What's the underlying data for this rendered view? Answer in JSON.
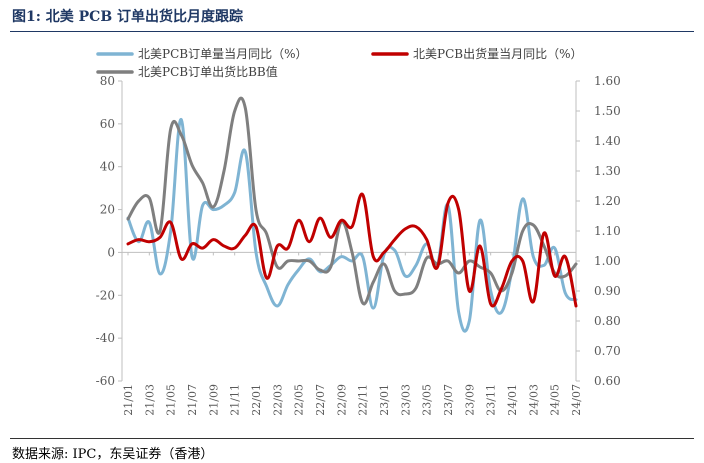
{
  "figure_title": "图1: 北美 PCB 订单出货比月度跟踪",
  "source_note": "数据来源: IPC，东吴证券（香港）",
  "colors": {
    "orders": "#7fb4d3",
    "shipments": "#c00000",
    "bb_ratio": "#7f7f7f",
    "title": "#1f3864",
    "axis": "#bfbfbf",
    "tick_text": "#595959"
  },
  "chart_data": {
    "type": "line",
    "x": [
      "21/01",
      "21/02",
      "21/03",
      "21/04",
      "21/05",
      "21/06",
      "21/07",
      "21/08",
      "21/09",
      "21/10",
      "21/11",
      "21/12",
      "22/01",
      "22/02",
      "22/03",
      "22/04",
      "22/05",
      "22/06",
      "22/07",
      "22/08",
      "22/09",
      "22/10",
      "22/11",
      "22/12",
      "23/01",
      "23/02",
      "23/03",
      "23/04",
      "23/05",
      "23/06",
      "23/07",
      "23/08",
      "23/09",
      "23/10",
      "23/11",
      "23/12",
      "24/01",
      "24/02",
      "24/03",
      "24/04",
      "24/05",
      "24/06",
      "24/07"
    ],
    "x_tick_labels": [
      "21/01",
      "21/03",
      "21/05",
      "21/07",
      "21/09",
      "21/11",
      "22/01",
      "22/03",
      "22/05",
      "22/07",
      "22/09",
      "22/11",
      "23/01",
      "23/03",
      "23/05",
      "23/07",
      "23/09",
      "23/11",
      "24/01",
      "24/03",
      "24/05",
      "24/07"
    ],
    "y_left": {
      "ylim": [
        -60,
        80
      ],
      "ticks": [
        "80",
        "60",
        "40",
        "20",
        "0",
        "-20",
        "-40",
        "-60"
      ]
    },
    "y_right": {
      "ylim": [
        0.6,
        1.6
      ],
      "ticks": [
        "1.60",
        "1.50",
        "1.40",
        "1.30",
        "1.20",
        "1.10",
        "1.00",
        "0.90",
        "0.80",
        "0.70",
        "0.60"
      ]
    },
    "legend_position": "top",
    "series": [
      {
        "name": "北美PCB订单量当月同比（%）",
        "axis": "left",
        "color_key": "orders",
        "values": [
          16,
          5,
          14,
          -10,
          10,
          62,
          -2,
          22,
          20,
          22,
          28,
          47,
          0,
          -16,
          -25,
          -15,
          -8,
          -3,
          -9,
          -6,
          -2,
          -4,
          -2,
          -26,
          -1,
          1,
          -11,
          -6,
          4,
          -6,
          22,
          -28,
          -32,
          15,
          -18,
          -28,
          -8,
          25,
          -2,
          -6,
          2,
          -19,
          -22
        ]
      },
      {
        "name": "北美PCB出货量当月同比（%）",
        "axis": "left",
        "color_key": "shipments",
        "values": [
          4,
          6,
          5,
          7,
          14,
          -3,
          4,
          2,
          6,
          3,
          2,
          8,
          12,
          -12,
          3,
          2,
          15,
          5,
          16,
          7,
          15,
          12,
          27,
          -2,
          0,
          6,
          11,
          12,
          6,
          -7,
          23,
          20,
          -18,
          3,
          -24,
          -17,
          -4,
          -4,
          -23,
          9,
          -11,
          -2,
          -25
        ]
      },
      {
        "name": "北美PCB订单出货比BB值",
        "axis": "right",
        "color_key": "bb_ratio",
        "values": [
          1.14,
          1.2,
          1.21,
          1.1,
          1.44,
          1.42,
          1.32,
          1.26,
          1.18,
          1.3,
          1.5,
          1.51,
          1.17,
          1.09,
          0.98,
          1.0,
          1.0,
          1.0,
          0.97,
          0.98,
          1.13,
          1.03,
          0.86,
          0.93,
          0.99,
          0.9,
          0.89,
          0.91,
          1.01,
          0.99,
          1.0,
          0.96,
          1.0,
          0.98,
          0.96,
          0.9,
          0.96,
          1.1,
          1.12,
          1.05,
          0.96,
          0.95,
          0.99
        ]
      }
    ]
  }
}
